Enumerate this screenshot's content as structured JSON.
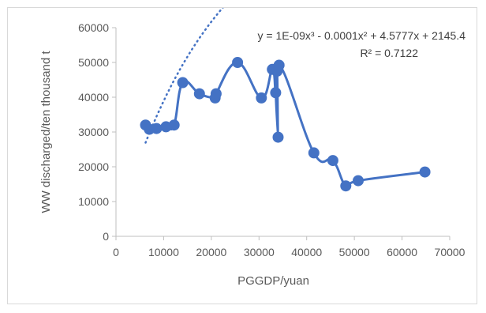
{
  "chart_data": {
    "type": "scatter",
    "xlabel": "PGGDP/yuan",
    "ylabel": "WW discharged/ten thousand t",
    "xlim": [
      0,
      70000
    ],
    "ylim": [
      0,
      60000
    ],
    "x_ticks": [
      "0",
      "10000",
      "20000",
      "30000",
      "40000",
      "50000",
      "60000",
      "70000"
    ],
    "y_ticks": [
      "0",
      "10000",
      "20000",
      "30000",
      "40000",
      "50000",
      "60000"
    ],
    "grid": false,
    "legend": "none",
    "series_color": "#4472c4",
    "series": [
      {
        "x": [
          6200,
          7000,
          8500,
          10500,
          12200,
          14000,
          17500,
          20800,
          21000,
          25500,
          30500,
          32800,
          33500,
          33800,
          34000,
          34200,
          41500,
          45500,
          48200,
          50800,
          64800
        ],
        "y": [
          32000,
          30800,
          31000,
          31500,
          32000,
          44200,
          41000,
          39800,
          41000,
          50000,
          39800,
          48000,
          41300,
          47500,
          28500,
          49200,
          24000,
          21800,
          14500,
          16000,
          18500
        ]
      }
    ],
    "trendline": {
      "type": "polynomial-3",
      "coefficients": [
        2145.4,
        4.5777,
        -0.0001,
        1e-09
      ],
      "style": "dotted",
      "equation": "y = 1E-09x³ - 0.0001x² + 4.5777x + 2145.4",
      "r2": "R² = 0.7122"
    }
  }
}
